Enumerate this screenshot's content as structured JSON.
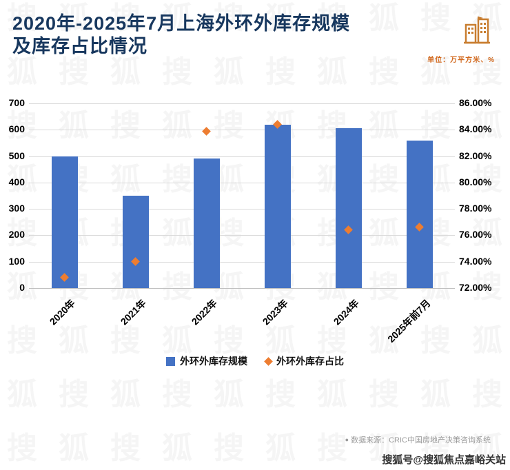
{
  "header": {
    "title_line1": "2020年-2025年7月上海外环外库存规模",
    "title_line2": "及库存占比情况",
    "unit_label": "单位：万平方米、%"
  },
  "chart_data": {
    "type": "bar",
    "title": "2020年-2025年7月上海外环外库存规模及库存占比情况",
    "categories": [
      "2020年",
      "2021年",
      "2022年",
      "2023年",
      "2024年",
      "2025年前7月"
    ],
    "series": [
      {
        "name": "外环外库存规模",
        "kind": "bar",
        "axis": "left",
        "color": "#4472C4",
        "values": [
          500,
          350,
          490,
          620,
          605,
          560
        ]
      },
      {
        "name": "外环外库存占比",
        "kind": "scatter",
        "axis": "right",
        "marker": "diamond",
        "color": "#ED7D31",
        "values": [
          72.8,
          74.0,
          83.9,
          84.4,
          76.4,
          76.6
        ]
      }
    ],
    "left_axis": {
      "min": 0,
      "max": 700,
      "step": 100,
      "ticks": [
        "700",
        "600",
        "500",
        "400",
        "300",
        "200",
        "100",
        "0"
      ]
    },
    "right_axis": {
      "min": 72,
      "max": 86,
      "step": 2,
      "ticks": [
        "86.00%",
        "84.00%",
        "82.00%",
        "80.00%",
        "78.00%",
        "76.00%",
        "74.00%",
        "72.00%"
      ]
    },
    "grid": true,
    "legend_position": "bottom",
    "unit": "万平方米、%"
  },
  "legend": {
    "items": [
      {
        "label": "外环外库存规模",
        "marker": "square",
        "color": "#4472C4"
      },
      {
        "label": "外环外库存占比",
        "marker": "diamond",
        "color": "#ED7D31"
      }
    ]
  },
  "footer": {
    "source_bullet": "●",
    "source_text": "数据来源：CRIC中国房地产决策咨询系统",
    "credit": "搜狐号@搜狐焦点嘉峪关站"
  },
  "watermark": {
    "chars": [
      "搜",
      "狐"
    ]
  }
}
